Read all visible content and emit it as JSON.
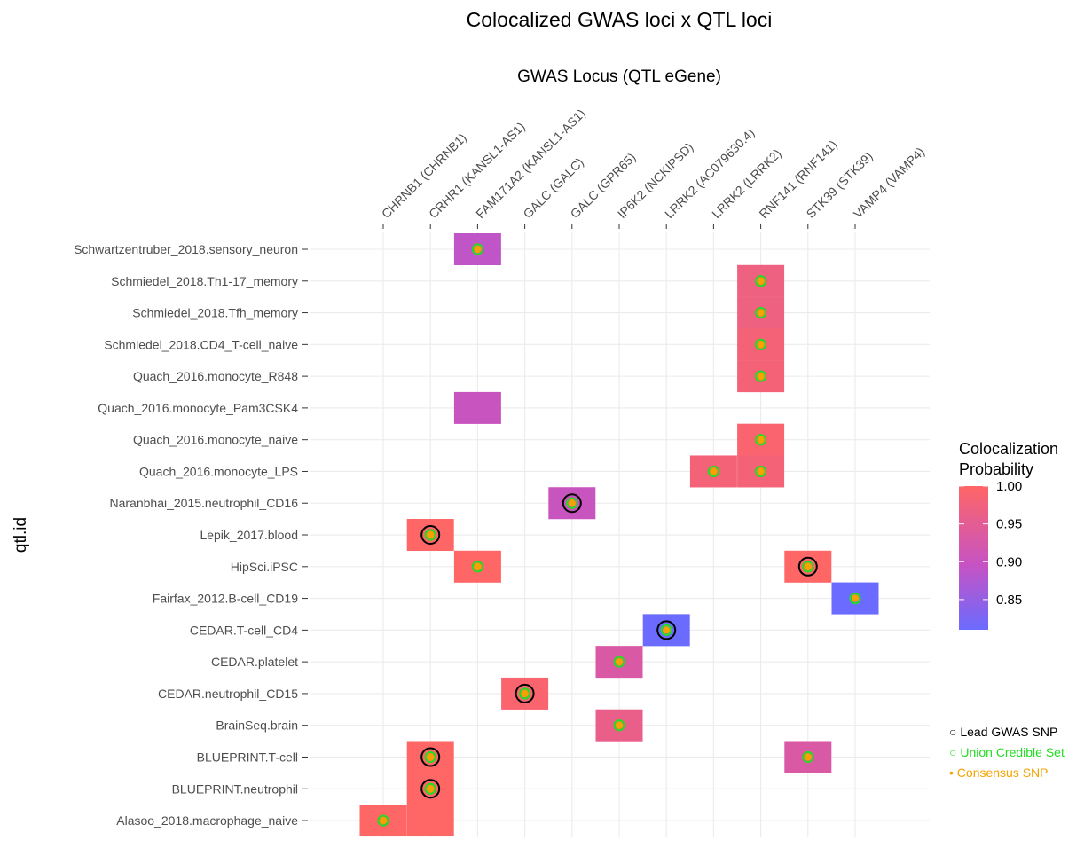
{
  "chart_data": {
    "type": "heatmap",
    "title": "Colocalized GWAS loci x QTL loci",
    "xlabel": "GWAS Locus (QTL eGene)",
    "ylabel": "qtl.id",
    "x_categories": [
      "CHRNB1 (CHRNB1)",
      "CRHR1 (KANSL1-AS1)",
      "FAM171A2 (KANSL1-AS1)",
      "GALC (GALC)",
      "GALC (GPR65)",
      "IP6K2 (NCKIPSD)",
      "LRRK2 (AC079630.4)",
      "LRRK2 (LRRK2)",
      "RNF141 (RNF141)",
      "STK39 (STK39)",
      "VAMP4 (VAMP4)"
    ],
    "y_categories": [
      "Schwartzentruber_2018.sensory_neuron",
      "Schmiedel_2018.Th1-17_memory",
      "Schmiedel_2018.Tfh_memory",
      "Schmiedel_2018.CD4_T-cell_naive",
      "Quach_2016.monocyte_R848",
      "Quach_2016.monocyte_Pam3CSK4",
      "Quach_2016.monocyte_naive",
      "Quach_2016.monocyte_LPS",
      "Naranbhai_2015.neutrophil_CD16",
      "Lepik_2017.blood",
      "HipSci.iPSC",
      "Fairfax_2012.B-cell_CD19",
      "CEDAR.T-cell_CD4",
      "CEDAR.platelet",
      "CEDAR.neutrophil_CD15",
      "BrainSeq.brain",
      "BLUEPRINT.T-cell",
      "BLUEPRINT.neutrophil",
      "Alasoo_2018.macrophage_naive"
    ],
    "cells": [
      {
        "x": "FAM171A2 (KANSL1-AS1)",
        "y": "Schwartzentruber_2018.sensory_neuron",
        "prob": 0.89,
        "lead": false,
        "union": true,
        "consensus": true
      },
      {
        "x": "RNF141 (RNF141)",
        "y": "Schmiedel_2018.Th1-17_memory",
        "prob": 0.97,
        "lead": false,
        "union": true,
        "consensus": true
      },
      {
        "x": "RNF141 (RNF141)",
        "y": "Schmiedel_2018.Tfh_memory",
        "prob": 0.97,
        "lead": false,
        "union": true,
        "consensus": true
      },
      {
        "x": "RNF141 (RNF141)",
        "y": "Schmiedel_2018.CD4_T-cell_naive",
        "prob": 0.98,
        "lead": false,
        "union": true,
        "consensus": true
      },
      {
        "x": "RNF141 (RNF141)",
        "y": "Quach_2016.monocyte_R848",
        "prob": 0.98,
        "lead": false,
        "union": true,
        "consensus": true
      },
      {
        "x": "FAM171A2 (KANSL1-AS1)",
        "y": "Quach_2016.monocyte_Pam3CSK4",
        "prob": 0.9,
        "lead": false,
        "union": false,
        "consensus": false
      },
      {
        "x": "RNF141 (RNF141)",
        "y": "Quach_2016.monocyte_naive",
        "prob": 0.99,
        "lead": false,
        "union": true,
        "consensus": true
      },
      {
        "x": "LRRK2 (LRRK2)",
        "y": "Quach_2016.monocyte_LPS",
        "prob": 0.98,
        "lead": false,
        "union": true,
        "consensus": true
      },
      {
        "x": "RNF141 (RNF141)",
        "y": "Quach_2016.monocyte_LPS",
        "prob": 0.98,
        "lead": false,
        "union": true,
        "consensus": true
      },
      {
        "x": "GALC (GPR65)",
        "y": "Naranbhai_2015.neutrophil_CD16",
        "prob": 0.9,
        "lead": true,
        "union": true,
        "consensus": true
      },
      {
        "x": "CRHR1 (KANSL1-AS1)",
        "y": "Lepik_2017.blood",
        "prob": 1.0,
        "lead": true,
        "union": true,
        "consensus": true
      },
      {
        "x": "FAM171A2 (KANSL1-AS1)",
        "y": "HipSci.iPSC",
        "prob": 1.0,
        "lead": false,
        "union": true,
        "consensus": true
      },
      {
        "x": "STK39 (STK39)",
        "y": "HipSci.iPSC",
        "prob": 1.0,
        "lead": true,
        "union": true,
        "consensus": true
      },
      {
        "x": "VAMP4 (VAMP4)",
        "y": "Fairfax_2012.B-cell_CD19",
        "prob": 0.81,
        "lead": false,
        "union": true,
        "consensus": true
      },
      {
        "x": "LRRK2 (AC079630.4)",
        "y": "CEDAR.T-cell_CD4",
        "prob": 0.81,
        "lead": true,
        "union": true,
        "consensus": true
      },
      {
        "x": "IP6K2 (NCKIPSD)",
        "y": "CEDAR.platelet",
        "prob": 0.93,
        "lead": false,
        "union": true,
        "consensus": true
      },
      {
        "x": "GALC (GALC)",
        "y": "CEDAR.neutrophil_CD15",
        "prob": 0.99,
        "lead": true,
        "union": true,
        "consensus": true
      },
      {
        "x": "IP6K2 (NCKIPSD)",
        "y": "BrainSeq.brain",
        "prob": 0.96,
        "lead": false,
        "union": true,
        "consensus": true
      },
      {
        "x": "CRHR1 (KANSL1-AS1)",
        "y": "BLUEPRINT.T-cell",
        "prob": 1.0,
        "lead": true,
        "union": true,
        "consensus": true
      },
      {
        "x": "STK39 (STK39)",
        "y": "BLUEPRINT.T-cell",
        "prob": 0.93,
        "lead": false,
        "union": true,
        "consensus": true
      },
      {
        "x": "CRHR1 (KANSL1-AS1)",
        "y": "BLUEPRINT.neutrophil",
        "prob": 1.0,
        "lead": true,
        "union": true,
        "consensus": true
      },
      {
        "x": "CHRNB1 (CHRNB1)",
        "y": "Alasoo_2018.macrophage_naive",
        "prob": 1.0,
        "lead": false,
        "union": true,
        "consensus": true
      },
      {
        "x": "CRHR1 (KANSL1-AS1)",
        "y": "Alasoo_2018.macrophage_naive",
        "prob": 1.0,
        "lead": false,
        "union": false,
        "consensus": false
      }
    ],
    "colorbar": {
      "title_line1": "Colocalization",
      "title_line2": "Probability",
      "range": [
        0.81,
        1.0
      ],
      "ticks": [
        "1.00",
        "0.95",
        "0.90",
        "0.85"
      ],
      "tick_values": [
        1.0,
        0.95,
        0.9,
        0.85
      ],
      "color_low": "#6B6BFF",
      "color_mid": "#C653C4",
      "color_high": "#FF6666"
    },
    "marker_legend": [
      {
        "symbol": "○",
        "label": "Lead GWAS SNP",
        "color": "#000000"
      },
      {
        "symbol": "○",
        "label": "Union Credible Set",
        "color": "#22DD22"
      },
      {
        "symbol": "•",
        "label": "Consensus SNP",
        "color": "#F4A300"
      }
    ],
    "grid": true
  }
}
